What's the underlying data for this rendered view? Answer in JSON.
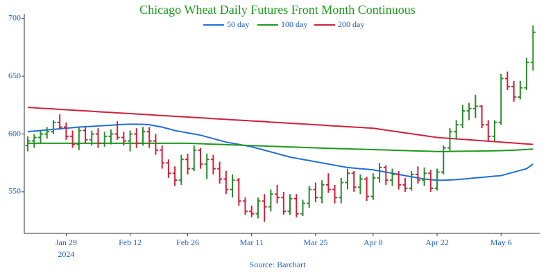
{
  "chart_data": {
    "type": "ohlc",
    "title": "Chicago Wheat Daily Futures Front Month Continuous",
    "source": "Source: Barchart",
    "up_color": "#2a8a2a",
    "down_color": "#d0203a",
    "categories": [
      "2024-01-19",
      "2024-01-22",
      "2024-01-23",
      "2024-01-24",
      "2024-01-25",
      "2024-01-26",
      "2024-01-29",
      "2024-01-30",
      "2024-01-31",
      "2024-02-01",
      "2024-02-02",
      "2024-02-05",
      "2024-02-06",
      "2024-02-07",
      "2024-02-08",
      "2024-02-09",
      "2024-02-12",
      "2024-02-13",
      "2024-02-14",
      "2024-02-15",
      "2024-02-16",
      "2024-02-20",
      "2024-02-21",
      "2024-02-22",
      "2024-02-23",
      "2024-02-26",
      "2024-02-27",
      "2024-02-28",
      "2024-02-29",
      "2024-03-01",
      "2024-03-04",
      "2024-03-05",
      "2024-03-06",
      "2024-03-07",
      "2024-03-08",
      "2024-03-11",
      "2024-03-12",
      "2024-03-13",
      "2024-03-14",
      "2024-03-15",
      "2024-03-18",
      "2024-03-19",
      "2024-03-20",
      "2024-03-21",
      "2024-03-22",
      "2024-03-25",
      "2024-03-26",
      "2024-03-27",
      "2024-03-28",
      "2024-04-01",
      "2024-04-02",
      "2024-04-03",
      "2024-04-04",
      "2024-04-05",
      "2024-04-08",
      "2024-04-09",
      "2024-04-10",
      "2024-04-11",
      "2024-04-12",
      "2024-04-15",
      "2024-04-16",
      "2024-04-17",
      "2024-04-18",
      "2024-04-19",
      "2024-04-22",
      "2024-04-23",
      "2024-04-24",
      "2024-04-25",
      "2024-04-26",
      "2024-04-29",
      "2024-04-30",
      "2024-05-01",
      "2024-05-02",
      "2024-05-03",
      "2024-05-06",
      "2024-05-07",
      "2024-05-08",
      "2024-05-09",
      "2024-05-10",
      "2024-05-13"
    ],
    "open": [
      590,
      594,
      597,
      600,
      602,
      610,
      606,
      598,
      591,
      603,
      595,
      600,
      592,
      598,
      600,
      597,
      594,
      600,
      592,
      602,
      594,
      586,
      575,
      566,
      560,
      578,
      570,
      586,
      574,
      578,
      570,
      561,
      552,
      560,
      542,
      533,
      531,
      542,
      537,
      548,
      545,
      533,
      544,
      531,
      540,
      552,
      545,
      556,
      552,
      545,
      558,
      566,
      554,
      561,
      546,
      562,
      571,
      560,
      565,
      556,
      553,
      565,
      560,
      566,
      553,
      567,
      588,
      602,
      608,
      620,
      622,
      624,
      608,
      598,
      610,
      648,
      641,
      632,
      640,
      662
    ],
    "high": [
      598,
      600,
      603,
      606,
      612,
      617,
      610,
      603,
      606,
      606,
      603,
      605,
      602,
      604,
      611,
      602,
      603,
      605,
      606,
      606,
      600,
      590,
      578,
      572,
      582,
      583,
      590,
      588,
      583,
      582,
      576,
      568,
      565,
      562,
      545,
      538,
      545,
      548,
      552,
      556,
      550,
      548,
      548,
      543,
      555,
      558,
      560,
      566,
      556,
      562,
      570,
      568,
      565,
      563,
      566,
      575,
      573,
      570,
      568,
      562,
      568,
      572,
      571,
      569,
      570,
      590,
      605,
      612,
      625,
      627,
      634,
      625,
      612,
      612,
      652,
      654,
      646,
      646,
      666,
      694
    ],
    "low": [
      585,
      588,
      592,
      596,
      600,
      604,
      595,
      588,
      586,
      592,
      590,
      588,
      589,
      591,
      595,
      590,
      585,
      588,
      590,
      588,
      582,
      570,
      562,
      555,
      556,
      565,
      568,
      570,
      561,
      565,
      557,
      548,
      545,
      538,
      530,
      528,
      527,
      524,
      533,
      540,
      530,
      530,
      528,
      529,
      536,
      541,
      540,
      549,
      540,
      540,
      552,
      550,
      548,
      542,
      543,
      558,
      556,
      555,
      552,
      550,
      551,
      557,
      555,
      550,
      551,
      565,
      585,
      595,
      605,
      612,
      614,
      605,
      594,
      594,
      608,
      638,
      628,
      630,
      638,
      655
    ],
    "close": [
      594,
      597,
      600,
      602,
      610,
      606,
      598,
      591,
      603,
      595,
      600,
      592,
      598,
      600,
      597,
      594,
      600,
      592,
      602,
      594,
      586,
      575,
      566,
      560,
      578,
      570,
      586,
      574,
      578,
      570,
      561,
      552,
      560,
      542,
      533,
      531,
      542,
      537,
      548,
      545,
      533,
      544,
      531,
      540,
      552,
      545,
      556,
      552,
      545,
      558,
      566,
      554,
      561,
      546,
      562,
      571,
      560,
      565,
      556,
      553,
      565,
      560,
      566,
      553,
      567,
      588,
      602,
      608,
      620,
      622,
      624,
      608,
      598,
      610,
      648,
      641,
      632,
      640,
      662,
      688
    ],
    "series": [
      {
        "name": "50 day",
        "color": "#1f6fd8",
        "values": [
          602,
          602.5,
          603,
          603.5,
          604,
          604.5,
          605,
          605.5,
          606,
          606.3,
          606.6,
          607,
          607.3,
          607.6,
          608,
          608.3,
          608.5,
          608.5,
          608.3,
          608,
          607,
          606,
          604.5,
          603,
          602,
          601,
          600,
          599,
          597.5,
          596,
          594.5,
          593,
          592,
          591,
          590,
          589,
          587.5,
          586,
          584.5,
          583,
          581.5,
          580,
          579,
          578,
          577,
          576,
          575,
          574,
          573,
          572,
          571,
          570.5,
          570,
          569.5,
          569,
          568,
          567,
          566,
          565,
          564,
          563,
          562,
          561,
          560.5,
          560,
          560,
          560.2,
          560.5,
          561,
          561.5,
          562,
          562.5,
          563,
          563.5,
          564,
          565.5,
          567,
          568.5,
          570,
          574
        ]
      },
      {
        "name": "100 day",
        "color": "#1a9a1a",
        "values": [
          592,
          592,
          592,
          592,
          592,
          592,
          592,
          592,
          592,
          592,
          592,
          592,
          592,
          592,
          592,
          592,
          592,
          592,
          592,
          592,
          592,
          592,
          592,
          592,
          592,
          592,
          591.8,
          591.6,
          591.4,
          591.2,
          591,
          590.8,
          590.6,
          590.4,
          590.2,
          590,
          589.8,
          589.6,
          589.4,
          589.2,
          589,
          588.8,
          588.6,
          588.4,
          588.2,
          588,
          587.8,
          587.6,
          587.5,
          587.3,
          587.2,
          587,
          586.8,
          586.7,
          586.5,
          586.3,
          586.2,
          586,
          585.8,
          585.7,
          585.5,
          585.3,
          585.2,
          585,
          584.8,
          584.8,
          584.9,
          585,
          585.1,
          585.2,
          585.2,
          585.3,
          585.4,
          585.5,
          585.6,
          585.8,
          586,
          586.3,
          586.6,
          587
        ]
      },
      {
        "name": "200 day",
        "color": "#d0203a",
        "values": [
          623,
          622.7,
          622.3,
          622,
          621.7,
          621.3,
          621,
          620.7,
          620.3,
          620,
          619.7,
          619.3,
          619,
          618.7,
          618.3,
          618,
          617.7,
          617.3,
          617,
          616.7,
          616.3,
          616,
          615.7,
          615.3,
          615,
          614.7,
          614.3,
          614,
          613.7,
          613.3,
          613,
          612.7,
          612.3,
          612,
          611.7,
          611.3,
          611,
          610.7,
          610.3,
          610,
          609.7,
          609.3,
          609,
          608.7,
          608.3,
          608,
          607.7,
          607.3,
          607,
          606.7,
          606.3,
          606,
          605.7,
          605.3,
          605,
          604.2,
          603.4,
          602.6,
          601.8,
          601,
          600.2,
          599.4,
          598.6,
          597.8,
          597,
          596.6,
          596.2,
          595.8,
          595.4,
          595,
          594.6,
          594.2,
          593.8,
          593.4,
          593,
          592.6,
          592.2,
          591.8,
          591.4,
          591
        ]
      }
    ],
    "ylim": [
      514,
      704
    ],
    "yticks": [
      550,
      600,
      650,
      700
    ],
    "xticks": [
      {
        "value": "2024-01-29",
        "label": "Jan 29",
        "year": "2024"
      },
      {
        "value": "2024-02-12",
        "label": "Feb 12"
      },
      {
        "value": "2024-02-26",
        "label": "Feb 26"
      },
      {
        "value": "2024-03-11",
        "label": "Mar 11"
      },
      {
        "value": "2024-03-25",
        "label": "Mar 25"
      },
      {
        "value": "2024-04-08",
        "label": "Apr 8"
      },
      {
        "value": "2024-04-22",
        "label": "Apr 22"
      },
      {
        "value": "2024-05-06",
        "label": "May 6"
      }
    ],
    "grid": false
  }
}
